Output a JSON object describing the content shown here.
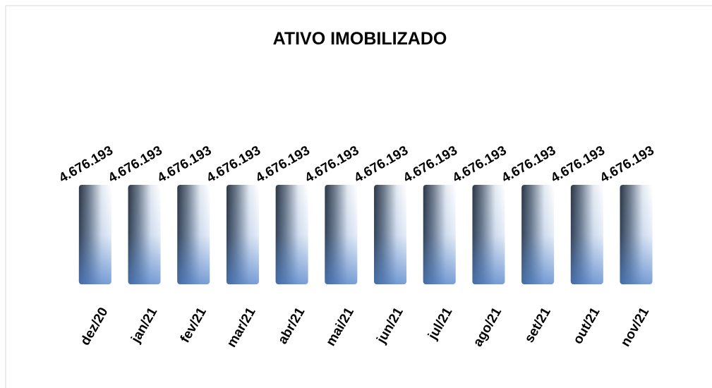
{
  "chart_data": {
    "type": "bar",
    "title": "ATIVO IMOBILIZADO",
    "categories": [
      "dez/20",
      "jan/21",
      "fev/21",
      "mar/21",
      "abr/21",
      "mai/21",
      "jun/21",
      "jul/21",
      "ago/21",
      "set/21",
      "out/21",
      "nov/21"
    ],
    "values": [
      4676193,
      4676193,
      4676193,
      4676193,
      4676193,
      4676193,
      4676193,
      4676193,
      4676193,
      4676193,
      4676193,
      4676193
    ],
    "value_labels": [
      "4.676.193",
      "4.676.193",
      "4.676.193",
      "4.676.193",
      "4.676.193",
      "4.676.193",
      "4.676.193",
      "4.676.193",
      "4.676.193",
      "4.676.193",
      "4.676.193",
      "4.676.193"
    ]
  }
}
